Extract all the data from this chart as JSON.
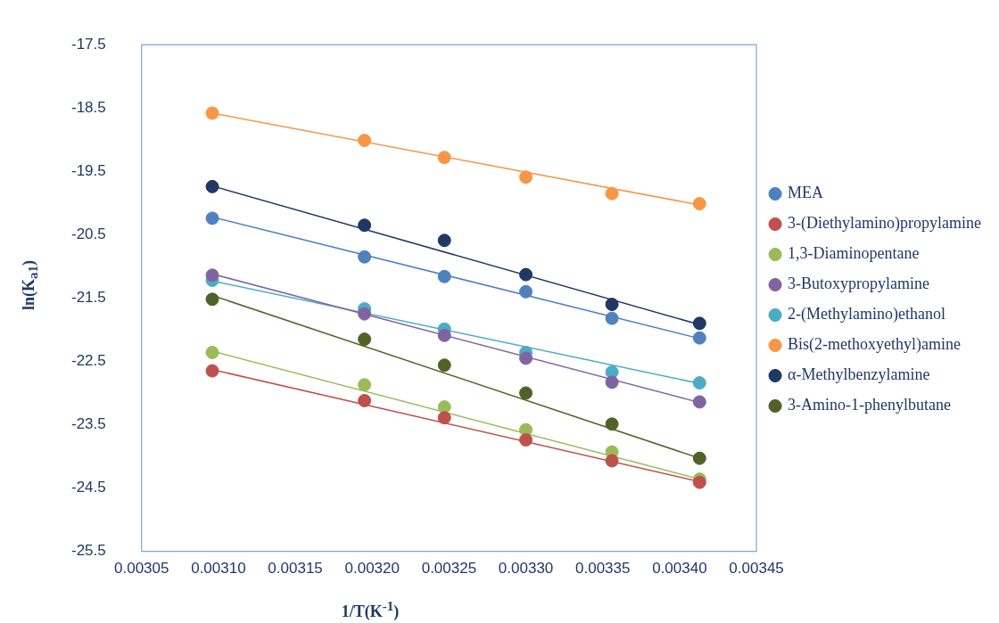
{
  "chart_data": {
    "type": "scatter",
    "xlabel": "1/T(K$^{-1}$)",
    "ylabel": "ln(K$_{a1}$)",
    "x": [
      0.003096,
      0.003195,
      0.003247,
      0.0033,
      0.003356,
      0.003413
    ],
    "xlim": [
      0.00305,
      0.00345
    ],
    "xticks": [
      {
        "value": 0.00305,
        "label": "0.00305"
      },
      {
        "value": 0.0031,
        "label": "0.00310"
      },
      {
        "value": 0.00315,
        "label": "0.00315"
      },
      {
        "value": 0.0032,
        "label": "0.00320"
      },
      {
        "value": 0.00325,
        "label": "0.00325"
      },
      {
        "value": 0.0033,
        "label": "0.00330"
      },
      {
        "value": 0.00335,
        "label": "0.00335"
      },
      {
        "value": 0.0034,
        "label": "0.00340"
      },
      {
        "value": 0.00345,
        "label": "0.00345"
      }
    ],
    "ylim": [
      -25.5,
      -17.5
    ],
    "yticks": [
      -25.5,
      -24.5,
      -23.5,
      -22.5,
      -21.5,
      -20.5,
      -19.5,
      -18.5,
      -17.5
    ],
    "grid": false,
    "legend": "right",
    "marker": "circle",
    "series": [
      {
        "name": "MEA",
        "color": "#4f81bd",
        "values": [
          -20.24,
          -20.85,
          -21.16,
          -21.4,
          -21.82,
          -22.13
        ]
      },
      {
        "name": "3-(Diethylamino)propylamine",
        "color": "#c0504d",
        "values": [
          -22.65,
          -23.12,
          -23.39,
          -23.74,
          -24.07,
          -24.41
        ]
      },
      {
        "name": "1,3-Diaminopentane",
        "color": "#9bbb59",
        "values": [
          -22.36,
          -22.87,
          -23.22,
          -23.58,
          -23.93,
          -24.36
        ]
      },
      {
        "name": "3-Butoxypropylamine",
        "color": "#8064a2",
        "values": [
          -21.14,
          -21.75,
          -22.09,
          -22.45,
          -22.83,
          -23.14
        ]
      },
      {
        "name": "2-(Methylamino)ethanol",
        "color": "#4bacc6",
        "values": [
          -21.22,
          -21.67,
          -21.99,
          -22.36,
          -22.67,
          -22.84
        ]
      },
      {
        "name": "Bis(2-methoxyethyl)amine",
        "color": "#f79646",
        "values": [
          -18.58,
          -19.01,
          -19.28,
          -19.59,
          -19.85,
          -20.01
        ]
      },
      {
        "name": "α-Methylbenzylamine",
        "color": "#1f3864",
        "values": [
          -19.74,
          -20.35,
          -20.59,
          -21.13,
          -21.6,
          -21.9
        ]
      },
      {
        "name": "3-Amino-1-phenylbutane",
        "color": "#4f6228",
        "values": [
          -21.52,
          -22.15,
          -22.56,
          -23.0,
          -23.49,
          -24.03
        ]
      },
      {
        "type": "line",
        "marker": "none",
        "color": "#4f81bd",
        "values": [
          -20.22,
          null,
          null,
          null,
          null,
          -22.14
        ]
      },
      {
        "type": "line",
        "marker": "none",
        "color": "#c0504d",
        "values": [
          -22.63,
          null,
          null,
          null,
          null,
          -24.4
        ]
      },
      {
        "type": "line",
        "marker": "none",
        "color": "#9bbb59",
        "values": [
          -22.34,
          null,
          null,
          null,
          null,
          -24.36
        ]
      },
      {
        "type": "line",
        "marker": "none",
        "color": "#8064a2",
        "values": [
          -21.12,
          null,
          null,
          null,
          null,
          -23.15
        ]
      },
      {
        "type": "line",
        "marker": "none",
        "color": "#4bacc6",
        "values": [
          -21.23,
          null,
          null,
          null,
          null,
          -22.85
        ]
      },
      {
        "type": "line",
        "marker": "none",
        "color": "#f79646",
        "values": [
          -18.58,
          null,
          null,
          null,
          null,
          -20.03
        ]
      },
      {
        "type": "line",
        "marker": "none",
        "color": "#1f3864",
        "values": [
          -19.73,
          null,
          null,
          null,
          null,
          -21.92
        ]
      },
      {
        "type": "line",
        "marker": "none",
        "color": "#4f6228",
        "values": [
          -21.46,
          null,
          null,
          null,
          null,
          -24.03
        ]
      }
    ]
  }
}
